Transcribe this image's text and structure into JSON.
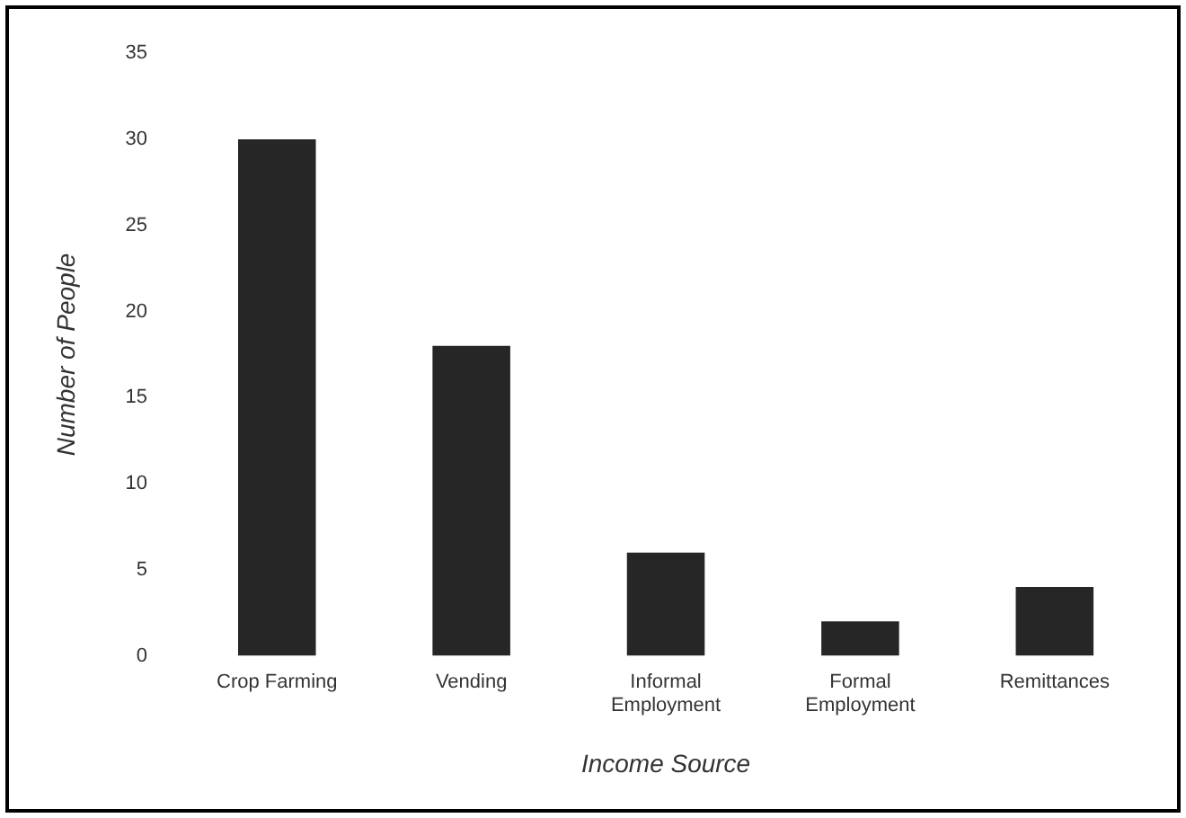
{
  "chart_data": {
    "type": "bar",
    "categories": [
      "Crop Farming",
      "Vending",
      "Informal Employment",
      "Formal Employment",
      "Remittances"
    ],
    "values": [
      30,
      18,
      6,
      2,
      4
    ],
    "color": "#262626",
    "xlabel": "Income Source",
    "ylabel": "Number of People",
    "ylim": [
      0,
      35
    ],
    "yticks": [
      0,
      5,
      10,
      15,
      20,
      25,
      30,
      35
    ],
    "grid": false,
    "legend": false
  }
}
